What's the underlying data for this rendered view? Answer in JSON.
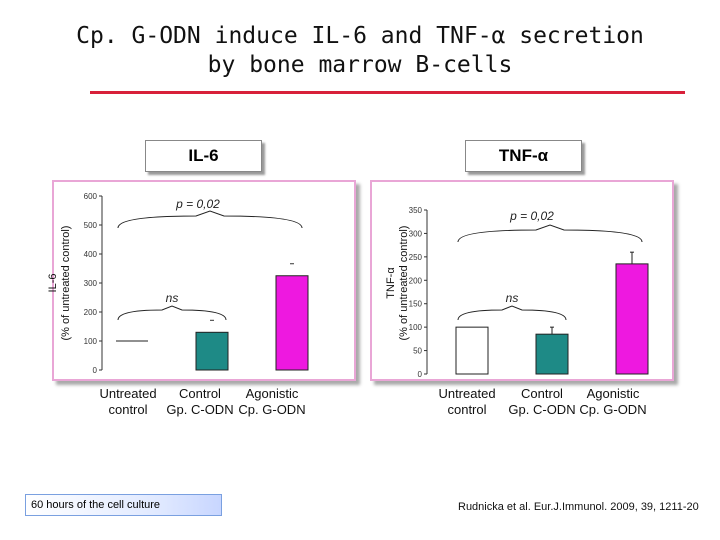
{
  "slide": {
    "title_line1": "Cp. G-ODN induce IL-6 and TNF-α secretion",
    "title_line2": "by bone marrow B-cells",
    "footnote": "60 hours of the cell culture",
    "citation": "Rudnicka et al. Eur.J.Immunol. 2009, 39, 1211-20"
  },
  "colors": {
    "untreated": "#ffffff",
    "control": "#1e8a86",
    "agonistic": "#ee18e0",
    "card_border": "#e9a6d6",
    "title_rule": "#d8203a"
  },
  "chart_data": [
    {
      "type": "bar",
      "title": "IL-6",
      "ylabel_line1": "IL-6",
      "ylabel_line2": "(% of untreated control)",
      "categories": [
        "Untreated control",
        "Control Gp. C-ODN",
        "Agonistic Cp. G-ODN"
      ],
      "category_lines": [
        [
          "Untreated",
          "control"
        ],
        [
          "Control",
          "Gp. C-ODN"
        ],
        [
          "Agonistic",
          "Cp. G-ODN"
        ]
      ],
      "values": [
        100,
        130,
        325
      ],
      "ylim": [
        0,
        600
      ],
      "yticks": [
        "0",
        "100",
        "200",
        "300",
        "400",
        "500",
        "600"
      ],
      "annotations": {
        "upper": "p = 0,02",
        "lower": "ns"
      }
    },
    {
      "type": "bar",
      "title": "TNF-α",
      "ylabel_line1": "TNF-α",
      "ylabel_line2": "(% of untreated control)",
      "categories": [
        "Untreated control",
        "Control Gp. C-ODN",
        "Agonistic Cp. G-ODN"
      ],
      "category_lines": [
        [
          "Untreated",
          "control"
        ],
        [
          "Control",
          "Gp. C-ODN"
        ],
        [
          "Agonistic",
          "Cp. G-ODN"
        ]
      ],
      "values": [
        100,
        85,
        235
      ],
      "errors": [
        0,
        15,
        25
      ],
      "ylim": [
        0,
        350
      ],
      "yticks": [
        "0",
        "50",
        "100",
        "150",
        "200",
        "250",
        "300",
        "350"
      ],
      "annotations": {
        "upper": "p = 0,02",
        "lower": "ns"
      }
    }
  ]
}
